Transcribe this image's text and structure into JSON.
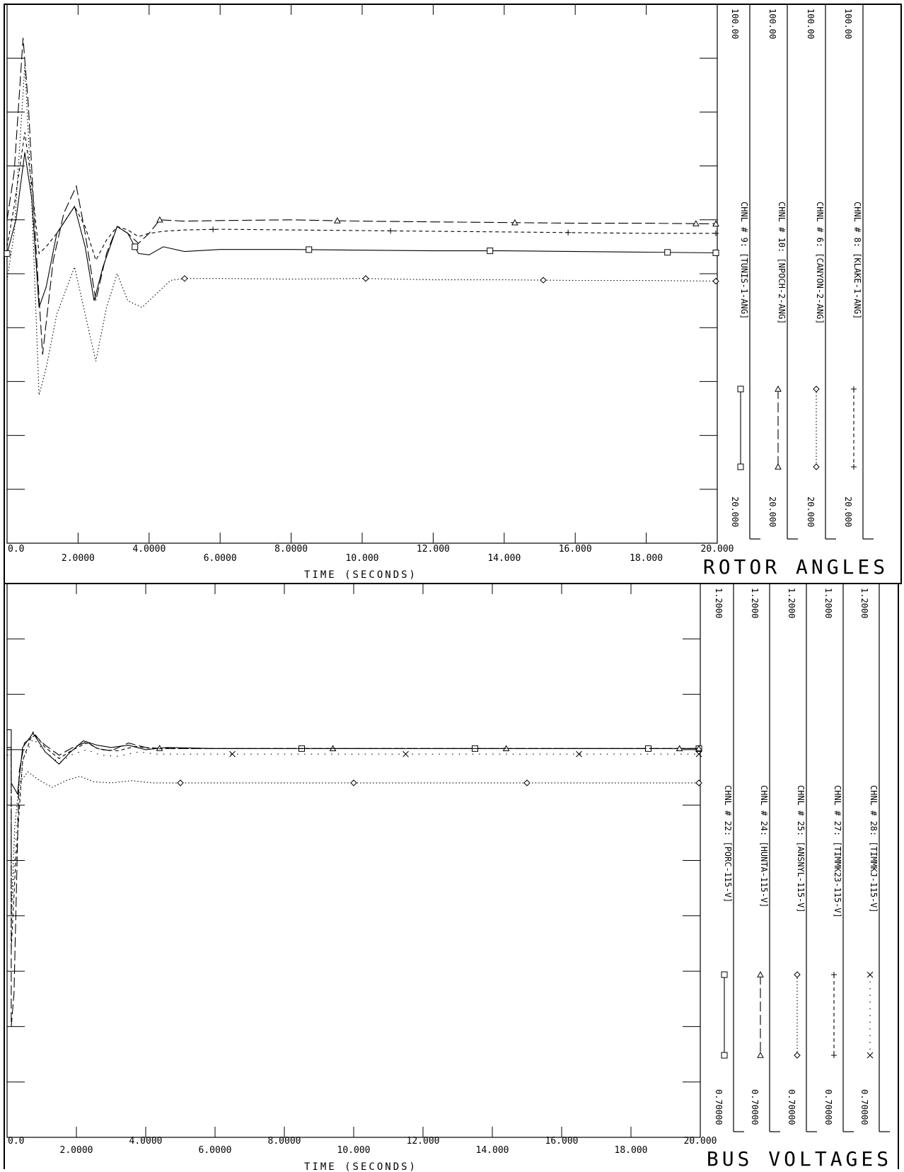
{
  "chart_data": [
    {
      "type": "line",
      "title": "ROTOR ANGLES",
      "xlabel": "TIME  (SECONDS)",
      "xlim": [
        0,
        20
      ],
      "x_ticks": [
        "0.0",
        "2.0000",
        "4.0000",
        "6.0000",
        "8.0000",
        "10.000",
        "12.000",
        "14.000",
        "16.000",
        "18.000",
        "20.000"
      ],
      "series": [
        {
          "name": "CHNL # 9: [TUNIS-1-ANG]",
          "style": "solid",
          "marker": "square",
          "scale_max": "100.00",
          "scale_min": "20.000",
          "ylim": [
            20,
            100
          ],
          "points": [
            [
              0,
              63
            ],
            [
              0.25,
              68
            ],
            [
              0.5,
              78
            ],
            [
              0.7,
              71
            ],
            [
              0.9,
              55
            ],
            [
              1.1,
              58
            ],
            [
              1.4,
              66
            ],
            [
              1.9,
              70
            ],
            [
              2.2,
              64
            ],
            [
              2.45,
              56
            ],
            [
              2.7,
              61
            ],
            [
              3.1,
              67
            ],
            [
              3.4,
              66
            ],
            [
              3.7,
              63
            ],
            [
              4.0,
              62.8
            ],
            [
              4.4,
              64
            ],
            [
              5,
              63.3
            ],
            [
              6,
              63.6
            ],
            [
              8,
              63.6
            ],
            [
              10,
              63.5
            ],
            [
              12,
              63.4
            ],
            [
              14,
              63.4
            ],
            [
              16,
              63.3
            ],
            [
              18,
              63.2
            ],
            [
              20,
              63.1
            ]
          ],
          "markers_x": [
            0,
            3.6,
            8.5,
            13.6,
            18.6,
            20
          ]
        },
        {
          "name": "CHNL # 10: [NPOCH-2-ANG]",
          "style": "longdash",
          "marker": "triangle",
          "scale_max": "100.00",
          "scale_min": "20.000",
          "ylim": [
            20,
            100
          ],
          "points": [
            [
              0,
              68
            ],
            [
              0.2,
              75
            ],
            [
              0.45,
              95
            ],
            [
              0.6,
              85
            ],
            [
              0.8,
              65
            ],
            [
              1.0,
              48
            ],
            [
              1.3,
              62
            ],
            [
              1.6,
              69
            ],
            [
              1.95,
              73
            ],
            [
              2.2,
              66
            ],
            [
              2.5,
              56
            ],
            [
              2.8,
              63
            ],
            [
              3.1,
              67
            ],
            [
              3.4,
              66
            ],
            [
              3.7,
              64.5
            ],
            [
              4.0,
              66
            ],
            [
              4.3,
              68
            ],
            [
              5,
              67.8
            ],
            [
              6,
              67.9
            ],
            [
              8,
              68
            ],
            [
              10,
              67.8
            ],
            [
              12,
              67.7
            ],
            [
              14,
              67.6
            ],
            [
              16,
              67.5
            ],
            [
              18,
              67.5
            ],
            [
              20,
              67.4
            ]
          ],
          "markers_x": [
            4.3,
            9.3,
            14.3,
            19.4,
            20
          ]
        },
        {
          "name": "CHNL # 6: [CANYON-2-ANG]",
          "style": "dotted",
          "marker": "diamond",
          "scale_max": "100.00",
          "scale_min": "20.000",
          "ylim": [
            20,
            100
          ],
          "points": [
            [
              0,
              59
            ],
            [
              0.2,
              66
            ],
            [
              0.5,
              91
            ],
            [
              0.7,
              70
            ],
            [
              0.9,
              42
            ],
            [
              1.1,
              46
            ],
            [
              1.4,
              54
            ],
            [
              1.9,
              61
            ],
            [
              2.2,
              54
            ],
            [
              2.5,
              47
            ],
            [
              2.8,
              55
            ],
            [
              3.1,
              60
            ],
            [
              3.4,
              56
            ],
            [
              3.8,
              55
            ],
            [
              4.2,
              57
            ],
            [
              4.6,
              59
            ],
            [
              5,
              59.3
            ],
            [
              6,
              59.3
            ],
            [
              8,
              59.2
            ],
            [
              10,
              59.3
            ],
            [
              12,
              59.1
            ],
            [
              14,
              59.1
            ],
            [
              16,
              59
            ],
            [
              18,
              59
            ],
            [
              20,
              58.9
            ]
          ],
          "markers_x": [
            5,
            10.1,
            15.1,
            20
          ]
        },
        {
          "name": "CHNL # 8: [KLAKE-1-ANG]",
          "style": "shortdash",
          "marker": "plus",
          "scale_max": "100.00",
          "scale_min": "20.000",
          "ylim": [
            20,
            100
          ],
          "points": [
            [
              0,
              64
            ],
            [
              0.2,
              70
            ],
            [
              0.5,
              81
            ],
            [
              0.7,
              73
            ],
            [
              0.9,
              63
            ],
            [
              1.1,
              64
            ],
            [
              1.4,
              66
            ],
            [
              1.9,
              70
            ],
            [
              2.2,
              67
            ],
            [
              2.5,
              62
            ],
            [
              2.8,
              65
            ],
            [
              3.1,
              67
            ],
            [
              3.4,
              66.5
            ],
            [
              3.7,
              65.5
            ],
            [
              4.0,
              66
            ],
            [
              4.4,
              66.3
            ],
            [
              5,
              66.5
            ],
            [
              6,
              66.6
            ],
            [
              8,
              66.5
            ],
            [
              10,
              66.4
            ],
            [
              12,
              66.3
            ],
            [
              14,
              66.2
            ],
            [
              16,
              66.1
            ],
            [
              18,
              66
            ],
            [
              20,
              66
            ]
          ],
          "markers_x": [
            5.8,
            10.8,
            15.8,
            20
          ]
        }
      ]
    },
    {
      "type": "line",
      "title": "BUS VOLTAGES",
      "xlabel": "TIME  (SECONDS)",
      "xlim": [
        0,
        20
      ],
      "x_ticks": [
        "0.0",
        "2.0000",
        "4.0000",
        "6.0000",
        "8.0000",
        "10.000",
        "12.000",
        "14.000",
        "16.000",
        "18.000",
        "20.000"
      ],
      "series": [
        {
          "name": "CHNL # 22: [PORC-115-V]",
          "style": "solid",
          "marker": "square",
          "scale_max": "1.2000",
          "scale_min": "0.70000",
          "ylim": [
            0.7,
            1.2
          ],
          "points": [
            [
              0,
              1.068
            ],
            [
              0.12,
              1.068
            ],
            [
              0.12,
              1.02
            ],
            [
              0.3,
              1.01
            ],
            [
              0.45,
              1.052
            ],
            [
              0.75,
              1.065
            ],
            [
              1.1,
              1.048
            ],
            [
              1.5,
              1.037
            ],
            [
              1.8,
              1.047
            ],
            [
              2.2,
              1.058
            ],
            [
              2.6,
              1.054
            ],
            [
              3.0,
              1.052
            ],
            [
              3.5,
              1.054
            ],
            [
              4.0,
              1.05
            ],
            [
              4.6,
              1.052
            ],
            [
              6,
              1.051
            ],
            [
              8,
              1.051
            ],
            [
              10,
              1.051
            ],
            [
              12,
              1.051
            ],
            [
              14,
              1.051
            ],
            [
              16,
              1.051
            ],
            [
              18,
              1.051
            ],
            [
              20,
              1.051
            ]
          ],
          "markers_x": [
            8.5,
            13.5,
            18.5,
            20
          ]
        },
        {
          "name": "CHNL # 24: [HUNTA-115-V]",
          "style": "longdash",
          "marker": "triangle",
          "scale_max": "1.2000",
          "scale_min": "0.70000",
          "ylim": [
            0.7,
            1.2
          ],
          "points": [
            [
              0,
              1.052
            ],
            [
              0.12,
              1.052
            ],
            [
              0.12,
              0.8
            ],
            [
              0.2,
              0.83
            ],
            [
              0.35,
              1.03
            ],
            [
              0.5,
              1.056
            ],
            [
              0.8,
              1.063
            ],
            [
              1.1,
              1.054
            ],
            [
              1.5,
              1.045
            ],
            [
              1.9,
              1.052
            ],
            [
              2.3,
              1.057
            ],
            [
              2.6,
              1.051
            ],
            [
              3.0,
              1.049
            ],
            [
              3.5,
              1.056
            ],
            [
              4.0,
              1.052
            ],
            [
              4.5,
              1.051
            ],
            [
              6,
              1.051
            ],
            [
              8,
              1.051
            ],
            [
              10,
              1.051
            ],
            [
              12,
              1.051
            ],
            [
              14,
              1.051
            ],
            [
              16,
              1.051
            ],
            [
              18,
              1.051
            ],
            [
              20,
              1.051
            ]
          ],
          "markers_x": [
            4.4,
            9.4,
            14.4,
            19.4,
            20
          ]
        },
        {
          "name": "CHNL # 25: [ANSNYL-115-V]",
          "style": "dotted",
          "marker": "diamond",
          "scale_max": "1.2000",
          "scale_min": "0.70000",
          "ylim": [
            0.7,
            1.2
          ],
          "points": [
            [
              0,
              1.045
            ],
            [
              0.12,
              1.045
            ],
            [
              0.12,
              0.9
            ],
            [
              0.22,
              0.98
            ],
            [
              0.35,
              1.02
            ],
            [
              0.6,
              1.03
            ],
            [
              0.9,
              1.023
            ],
            [
              1.3,
              1.016
            ],
            [
              1.7,
              1.022
            ],
            [
              2.1,
              1.026
            ],
            [
              2.5,
              1.021
            ],
            [
              3.0,
              1.02
            ],
            [
              3.6,
              1.022
            ],
            [
              4.2,
              1.02
            ],
            [
              5,
              1.02
            ],
            [
              6,
              1.02
            ],
            [
              8,
              1.02
            ],
            [
              10,
              1.02
            ],
            [
              12,
              1.02
            ],
            [
              14,
              1.02
            ],
            [
              16,
              1.02
            ],
            [
              18,
              1.02
            ],
            [
              20,
              1.02
            ]
          ],
          "markers_x": [
            5,
            10,
            15,
            20
          ]
        },
        {
          "name": "CHNL # 27: [TIMMK23-115-V]",
          "style": "shortdash",
          "marker": "plus",
          "scale_max": "1.2000",
          "scale_min": "0.70000",
          "ylim": [
            0.7,
            1.2
          ],
          "points": [
            [
              0,
              1.05
            ],
            [
              0.12,
              1.05
            ],
            [
              0.12,
              0.87
            ],
            [
              0.25,
              0.95
            ],
            [
              0.45,
              1.04
            ],
            [
              0.75,
              1.066
            ],
            [
              1.1,
              1.052
            ],
            [
              1.5,
              1.042
            ],
            [
              1.9,
              1.05
            ],
            [
              2.3,
              1.056
            ],
            [
              2.7,
              1.05
            ],
            [
              3.2,
              1.049
            ],
            [
              3.7,
              1.053
            ],
            [
              4.2,
              1.051
            ],
            [
              5,
              1.051
            ],
            [
              6,
              1.051
            ],
            [
              8,
              1.051
            ],
            [
              10,
              1.051
            ],
            [
              12,
              1.051
            ],
            [
              14,
              1.051
            ],
            [
              16,
              1.051
            ],
            [
              18,
              1.051
            ],
            [
              20,
              1.051
            ]
          ],
          "markers_x": []
        },
        {
          "name": "CHNL # 28: [TIMMKJ-115-V]",
          "style": "sparsedot",
          "marker": "cross",
          "scale_max": "1.2000",
          "scale_min": "0.70000",
          "ylim": [
            0.7,
            1.2
          ],
          "points": [
            [
              0,
              1.05
            ],
            [
              0.12,
              1.05
            ],
            [
              0.12,
              0.89
            ],
            [
              0.25,
              0.97
            ],
            [
              0.45,
              1.04
            ],
            [
              0.75,
              1.06
            ],
            [
              1.1,
              1.048
            ],
            [
              1.5,
              1.038
            ],
            [
              1.9,
              1.046
            ],
            [
              2.3,
              1.05
            ],
            [
              2.7,
              1.045
            ],
            [
              3.2,
              1.044
            ],
            [
              3.8,
              1.048
            ],
            [
              4.3,
              1.046
            ],
            [
              5,
              1.046
            ],
            [
              6,
              1.046
            ],
            [
              8,
              1.046
            ],
            [
              10,
              1.046
            ],
            [
              12,
              1.046
            ],
            [
              14,
              1.046
            ],
            [
              16,
              1.046
            ],
            [
              18,
              1.046
            ],
            [
              20,
              1.046
            ]
          ],
          "markers_x": [
            6.5,
            11.5,
            16.5,
            20
          ]
        }
      ]
    }
  ]
}
